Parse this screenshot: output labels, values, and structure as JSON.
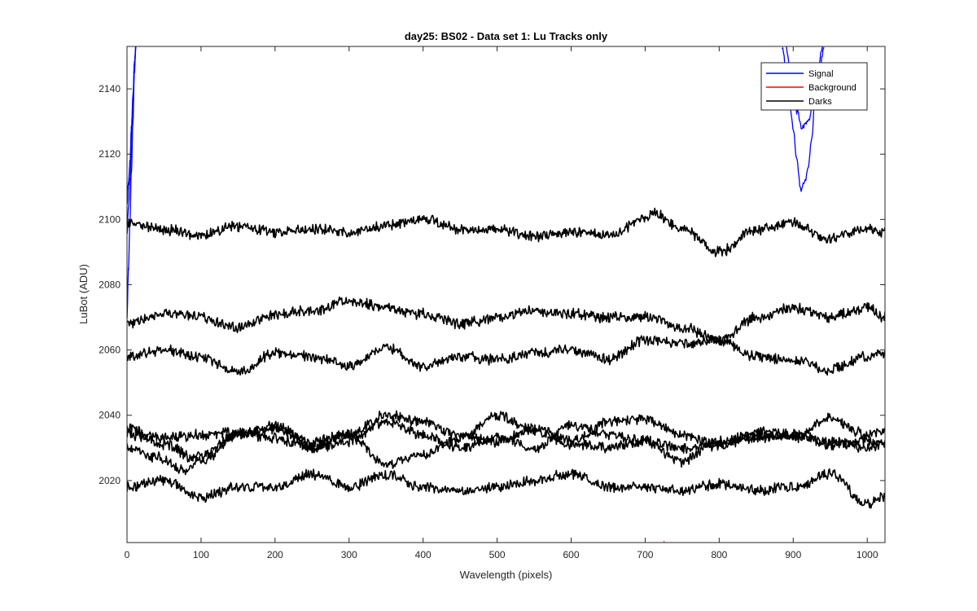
{
  "chart_data": {
    "type": "line",
    "title": "day25: BS02 - Data set 1: Lu Tracks only",
    "xlabel": "Wavelength (pixels)",
    "ylabel": "LuBot (ADU)",
    "xlim": [
      0,
      1024
    ],
    "ylim": [
      2001,
      2153
    ],
    "xticks": [
      0,
      100,
      200,
      300,
      400,
      500,
      600,
      700,
      800,
      900,
      1000
    ],
    "yticks": [
      2020,
      2040,
      2060,
      2080,
      2100,
      2120,
      2140
    ],
    "grid": false,
    "legend_position": "top-right",
    "legend": [
      {
        "name": "Signal",
        "color": "#0000ff"
      },
      {
        "name": "Background",
        "color": "#ff0000"
      },
      {
        "name": "Darks",
        "color": "#000000"
      }
    ],
    "series": [
      {
        "name": "Signal",
        "color": "#0000ff",
        "segment": "left",
        "x": [
          0,
          2,
          4,
          6,
          8,
          10,
          12
        ],
        "y": [
          2070,
          2085,
          2100,
          2115,
          2130,
          2145,
          2153
        ]
      },
      {
        "name": "Signal",
        "color": "#0000ff",
        "segment": "left",
        "x": [
          0,
          2,
          4,
          6,
          8,
          10,
          12
        ],
        "y": [
          2095,
          2104,
          2112,
          2122,
          2134,
          2146,
          2153
        ]
      },
      {
        "name": "Signal",
        "color": "#0000ff",
        "segment": "left",
        "x": [
          0,
          2,
          4,
          6,
          8,
          10,
          12
        ],
        "y": [
          2105,
          2111,
          2118,
          2128,
          2138,
          2148,
          2153
        ]
      },
      {
        "name": "Signal",
        "color": "#0000ff",
        "segment": "right",
        "x": [
          885,
          893,
          900,
          905,
          910,
          915,
          920,
          925,
          930,
          940
        ],
        "y": [
          2153,
          2140,
          2128,
          2118,
          2109,
          2111,
          2115,
          2125,
          2140,
          2153
        ]
      },
      {
        "name": "Signal",
        "color": "#0000ff",
        "segment": "right",
        "x": [
          890,
          898,
          905,
          912,
          920,
          928,
          935,
          942
        ],
        "y": [
          2153,
          2142,
          2133,
          2128,
          2130,
          2136,
          2145,
          2153
        ]
      },
      {
        "name": "Background",
        "color": "#ff0000",
        "x": [
          725,
          726
        ],
        "y": [
          2001.2,
          2001.4
        ]
      },
      {
        "name": "Darks",
        "color": "#000000",
        "x": [
          0,
          50,
          100,
          150,
          200,
          250,
          300,
          350,
          400,
          450,
          500,
          550,
          600,
          650,
          700,
          712,
          750,
          800,
          850,
          900,
          950,
          1000,
          1024
        ],
        "y": [
          2099,
          2097,
          2095,
          2098,
          2096,
          2097,
          2096,
          2098,
          2100,
          2097,
          2097,
          2095,
          2096,
          2095,
          2100,
          2102,
          2097,
          2090,
          2097,
          2099,
          2094,
          2097,
          2096
        ]
      },
      {
        "name": "Darks",
        "color": "#000000",
        "x": [
          0,
          50,
          100,
          150,
          200,
          250,
          300,
          350,
          400,
          450,
          500,
          550,
          600,
          650,
          700,
          750,
          800,
          850,
          900,
          950,
          1000,
          1024
        ],
        "y": [
          2068,
          2071,
          2070,
          2067,
          2071,
          2072,
          2075,
          2073,
          2071,
          2068,
          2070,
          2072,
          2071,
          2070,
          2070,
          2067,
          2063,
          2070,
          2073,
          2070,
          2073,
          2070
        ]
      },
      {
        "name": "Darks",
        "color": "#000000",
        "x": [
          0,
          50,
          100,
          150,
          200,
          250,
          300,
          350,
          400,
          450,
          500,
          550,
          600,
          650,
          700,
          750,
          800,
          850,
          900,
          950,
          1000,
          1024
        ],
        "y": [
          2058,
          2060,
          2058,
          2053,
          2059,
          2058,
          2055,
          2061,
          2055,
          2058,
          2057,
          2059,
          2060,
          2057,
          2063,
          2062,
          2063,
          2058,
          2057,
          2054,
          2058,
          2059
        ]
      },
      {
        "name": "Darks",
        "color": "#000000",
        "x": [
          0,
          50,
          100,
          150,
          200,
          250,
          300,
          350,
          400,
          450,
          500,
          550,
          600,
          650,
          700,
          750,
          800,
          850,
          900,
          950,
          1000,
          1024
        ],
        "y": [
          2036,
          2031,
          2026,
          2034,
          2037,
          2030,
          2034,
          2040,
          2038,
          2034,
          2032,
          2036,
          2032,
          2038,
          2039,
          2034,
          2031,
          2034,
          2033,
          2039,
          2034,
          2035
        ]
      },
      {
        "name": "Darks",
        "color": "#000000",
        "x": [
          0,
          40,
          80,
          100,
          150,
          200,
          250,
          300,
          350,
          400,
          450,
          500,
          550,
          600,
          650,
          700,
          750,
          800,
          850,
          900,
          950,
          1000,
          1024
        ],
        "y": [
          2030,
          2027,
          2023,
          2028,
          2034,
          2036,
          2032,
          2034,
          2025,
          2028,
          2033,
          2040,
          2035,
          2031,
          2030,
          2032,
          2026,
          2032,
          2035,
          2034,
          2032,
          2030,
          2031
        ]
      },
      {
        "name": "Darks",
        "color": "#000000",
        "x": [
          0,
          50,
          100,
          150,
          200,
          250,
          300,
          350,
          400,
          450,
          500,
          550,
          600,
          650,
          700,
          750,
          800,
          850,
          900,
          950,
          1000,
          1024
        ],
        "y": [
          2034,
          2033,
          2034,
          2035,
          2033,
          2030,
          2032,
          2038,
          2034,
          2030,
          2033,
          2030,
          2037,
          2034,
          2032,
          2030,
          2031,
          2033,
          2034,
          2031,
          2032,
          2031
        ]
      },
      {
        "name": "Darks",
        "color": "#000000",
        "x": [
          0,
          50,
          100,
          150,
          200,
          250,
          300,
          350,
          400,
          450,
          500,
          550,
          600,
          650,
          700,
          750,
          800,
          850,
          900,
          950,
          1000,
          1024
        ],
        "y": [
          2018,
          2020,
          2015,
          2018,
          2018,
          2022,
          2018,
          2022,
          2018,
          2017,
          2018,
          2020,
          2022,
          2018,
          2018,
          2017,
          2019,
          2017,
          2018,
          2022,
          2013,
          2015
        ]
      }
    ]
  }
}
